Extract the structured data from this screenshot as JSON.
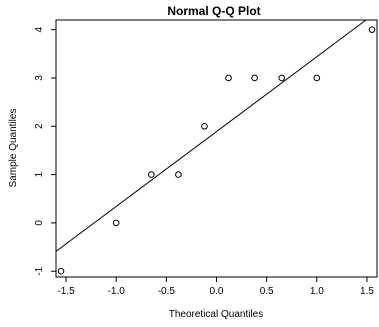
{
  "chart_data": {
    "type": "scatter",
    "title": "Normal Q-Q Plot",
    "xlabel": "Theoretical Quantiles",
    "ylabel": "Sample Quantiles",
    "xlim": [
      -1.6,
      1.6
    ],
    "ylim": [
      -1.12,
      4.2
    ],
    "xticks": [
      -1.5,
      -1.0,
      -0.5,
      0.0,
      0.5,
      1.0,
      1.5
    ],
    "xtick_labels": [
      "-1.5",
      "-1.0",
      "-0.5",
      "0.0",
      "0.5",
      "1.0",
      "1.5"
    ],
    "yticks": [
      -1,
      0,
      1,
      2,
      3,
      4
    ],
    "ytick_labels": [
      "-1",
      "0",
      "1",
      "2",
      "3",
      "4"
    ],
    "grid": false,
    "points": [
      {
        "x": -1.55,
        "y": -1
      },
      {
        "x": -1.0,
        "y": 0
      },
      {
        "x": -0.65,
        "y": 1
      },
      {
        "x": -0.38,
        "y": 1
      },
      {
        "x": -0.12,
        "y": 2
      },
      {
        "x": 0.12,
        "y": 3
      },
      {
        "x": 0.38,
        "y": 3
      },
      {
        "x": 0.65,
        "y": 3
      },
      {
        "x": 1.0,
        "y": 3
      },
      {
        "x": 1.55,
        "y": 4
      }
    ],
    "reference_line": {
      "intercept": 1.89,
      "slope": 1.55
    }
  }
}
